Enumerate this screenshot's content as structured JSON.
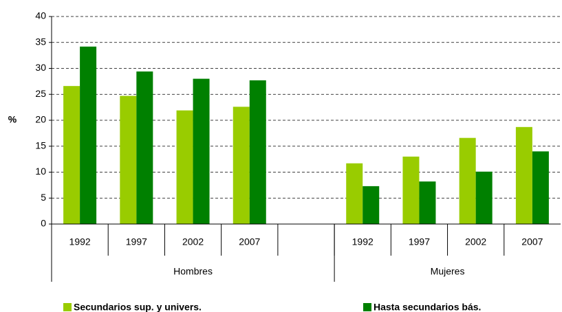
{
  "chart_data": {
    "type": "bar",
    "y_label": "%",
    "categories": [
      "1992",
      "1997",
      "2002",
      "2007",
      null,
      "1992",
      "1997",
      "2002",
      "2007"
    ],
    "groups": [
      "Hombres",
      "Mujeres"
    ],
    "series": [
      {
        "name": "Secundarios sup. y univers.",
        "color": "#99cc00",
        "values": [
          26.6,
          24.7,
          21.9,
          22.6,
          null,
          11.7,
          13.0,
          16.6,
          18.7
        ]
      },
      {
        "name": "Hasta secundarios bás.",
        "color": "#008000",
        "values": [
          34.2,
          29.4,
          28.0,
          27.7,
          null,
          7.3,
          8.2,
          10.1,
          14.0
        ]
      }
    ],
    "ylim": [
      0,
      40
    ],
    "yticks": [
      0,
      5,
      10,
      15,
      20,
      25,
      30,
      35,
      40
    ],
    "grid": true
  }
}
